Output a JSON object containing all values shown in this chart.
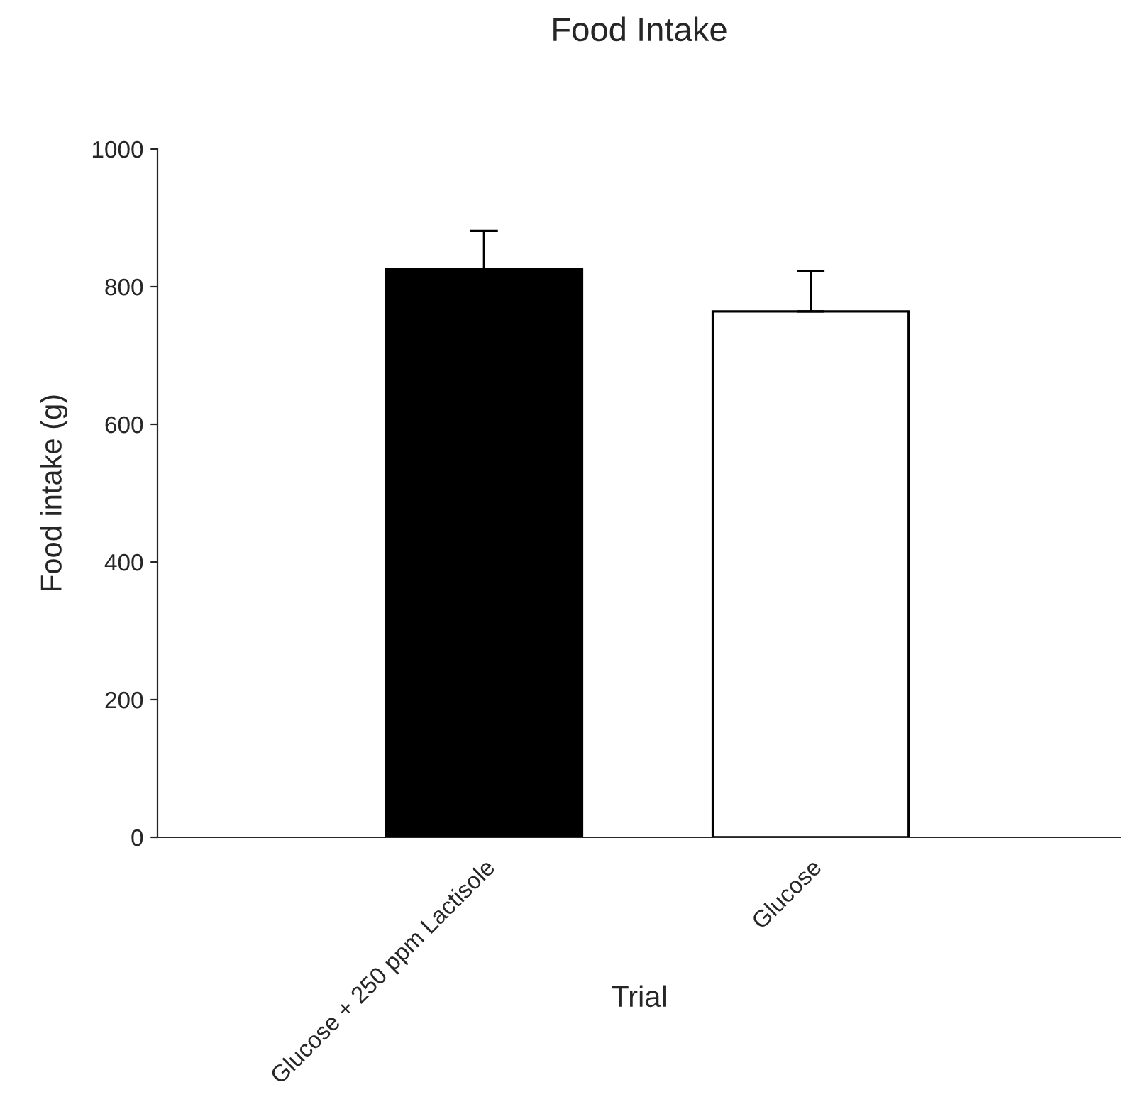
{
  "chart_data": {
    "type": "bar",
    "title": "Food Intake",
    "xlabel": "Trial",
    "ylabel": "Food intake (g)",
    "categories": [
      "Glucose + 250 ppm Lactisole",
      "Glucose"
    ],
    "values": [
      826,
      764
    ],
    "errors": [
      [
        826,
        881
      ],
      [
        764,
        823
      ]
    ],
    "colors": [
      "#000000",
      "#ffffff"
    ],
    "ylim": [
      0,
      1000
    ],
    "yticks": [
      0,
      200,
      400,
      600,
      800,
      1000
    ],
    "grid": false,
    "legend": false
  }
}
